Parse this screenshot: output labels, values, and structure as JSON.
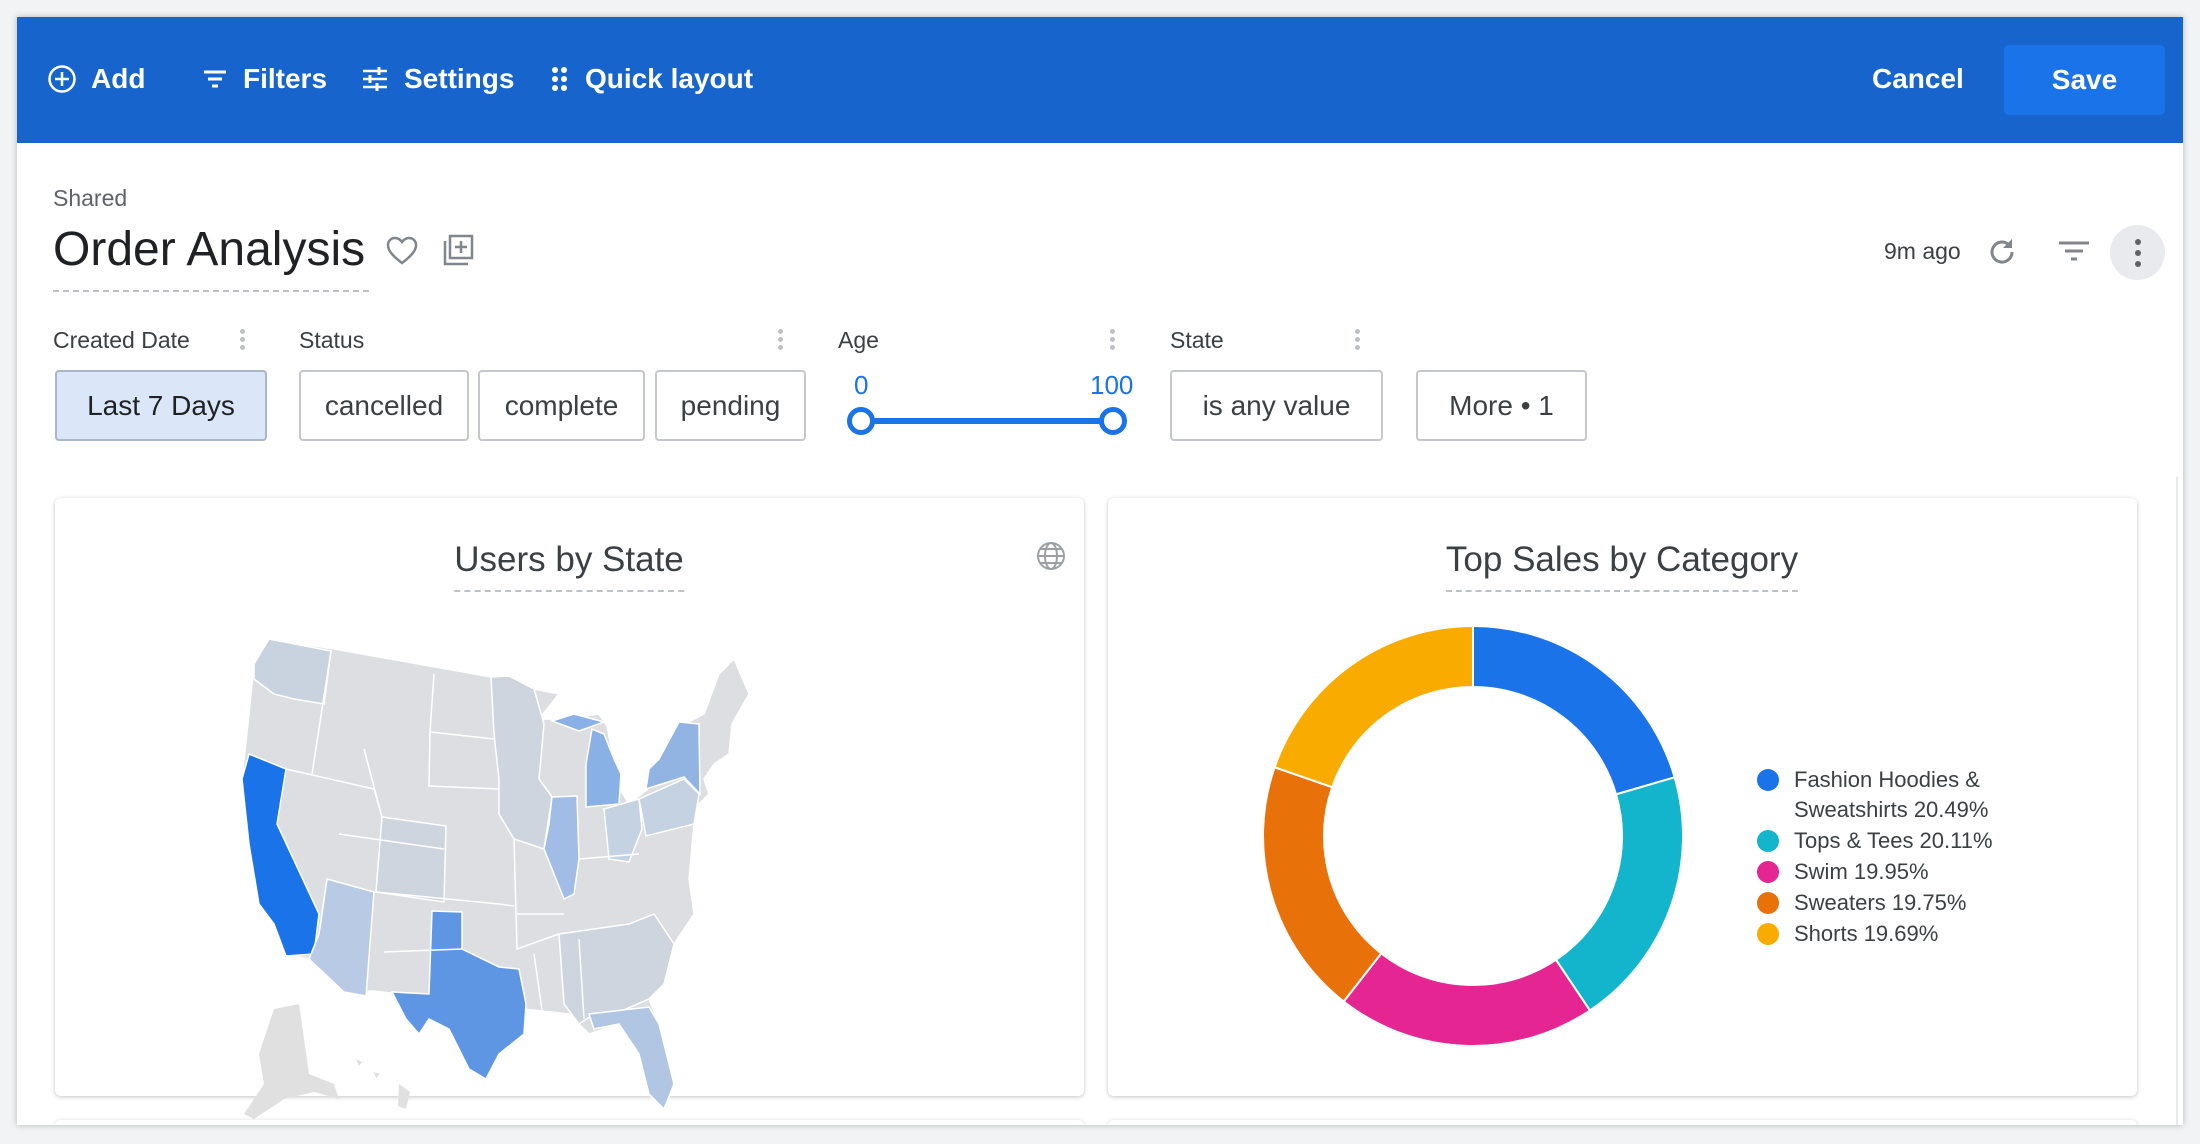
{
  "toolbar": {
    "add": "Add",
    "filters": "Filters",
    "settings": "Settings",
    "quick_layout": "Quick layout",
    "cancel": "Cancel",
    "save": "Save"
  },
  "header": {
    "folder": "Shared",
    "title": "Order Analysis",
    "updated": "9m ago"
  },
  "filters": [
    {
      "label": "Created Date",
      "values": [
        "Last 7 Days"
      ]
    },
    {
      "label": "Status",
      "values": [
        "cancelled",
        "complete",
        "pending"
      ]
    },
    {
      "label": "Age",
      "min": "0",
      "max": "100",
      "range": [
        0,
        100
      ]
    },
    {
      "label": "State",
      "values": [
        "is any value"
      ]
    }
  ],
  "more_filters": "More • 1",
  "tiles": {
    "map": {
      "title": "Users by State"
    },
    "donut": {
      "title": "Top Sales by Category"
    }
  },
  "chart_data": {
    "type": "pie",
    "donut": true,
    "title": "Top Sales by Category",
    "legend_position": "right",
    "categories": [
      "Fashion Hoodies & Sweatshirts",
      "Tops & Tees",
      "Swim",
      "Sweaters",
      "Shorts"
    ],
    "values": [
      20.49,
      20.11,
      19.95,
      19.75,
      19.69
    ],
    "labels": [
      "Fashion Hoodies & Sweatshirts 20.49%",
      "Tops & Tees 20.11%",
      "Swim 19.95%",
      "Sweaters 19.75%",
      "Shorts 19.69%"
    ],
    "colors": [
      "#1a73e8",
      "#12b5cb",
      "#e52592",
      "#e8710a",
      "#f9ab00"
    ]
  },
  "colors": {
    "topbar": "#1765cc",
    "accent": "#1a73e8"
  }
}
